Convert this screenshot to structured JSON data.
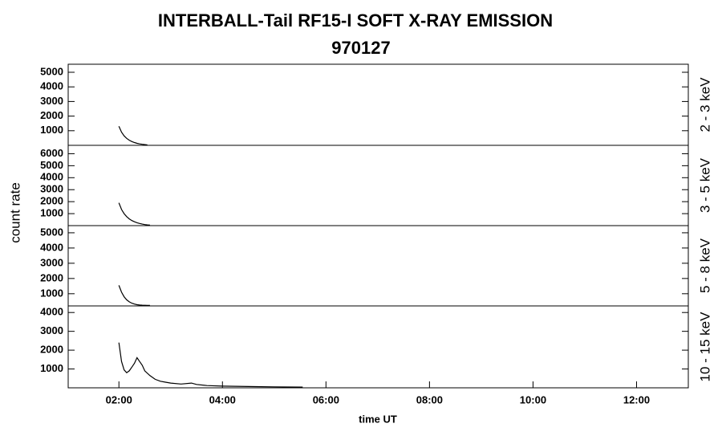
{
  "chart_data": {
    "type": "line",
    "title": "INTERBALL-Tail RF15-I SOFT X-RAY EMISSION",
    "subtitle": "970127",
    "x_label": "time UT",
    "y_label": "count rate",
    "color": "#000000",
    "xlim": [
      1.02,
      13.0
    ],
    "xticks": [
      {
        "value": 2,
        "label": "02:00"
      },
      {
        "value": 4,
        "label": "04:00"
      },
      {
        "value": 6,
        "label": "06:00"
      },
      {
        "value": 8,
        "label": "08:00"
      },
      {
        "value": 10,
        "label": "10:00"
      },
      {
        "value": 12,
        "label": "12:00"
      }
    ],
    "panels": [
      {
        "label": "2 - 3 keV",
        "ylim": [
          0,
          5550
        ],
        "yticks": [
          1000,
          2000,
          3000,
          4000,
          5000
        ],
        "x": [
          2.0,
          2.05,
          2.1,
          2.15,
          2.2,
          2.25,
          2.3,
          2.35,
          2.4,
          2.45,
          2.5,
          2.55
        ],
        "values": [
          1300,
          900,
          650,
          480,
          350,
          260,
          190,
          140,
          100,
          70,
          50,
          30
        ]
      },
      {
        "label": "3 - 5 keV",
        "ylim": [
          0,
          6700
        ],
        "yticks": [
          1000,
          2000,
          3000,
          4000,
          5000,
          6000
        ],
        "x": [
          2.0,
          2.05,
          2.1,
          2.15,
          2.2,
          2.25,
          2.3,
          2.35,
          2.4,
          2.45,
          2.5,
          2.55,
          2.6
        ],
        "values": [
          1900,
          1350,
          1000,
          750,
          560,
          420,
          320,
          240,
          180,
          130,
          90,
          60,
          40
        ]
      },
      {
        "label": "5 - 8 keV",
        "ylim": [
          200,
          5470
        ],
        "yticks": [
          1000,
          2000,
          3000,
          4000,
          5000
        ],
        "x": [
          2.0,
          2.05,
          2.1,
          2.15,
          2.2,
          2.25,
          2.3,
          2.35,
          2.4,
          2.45,
          2.5,
          2.55,
          2.6
        ],
        "values": [
          1550,
          1100,
          800,
          600,
          470,
          380,
          320,
          280,
          260,
          250,
          240,
          235,
          230
        ]
      },
      {
        "label": "10 - 15 keV",
        "ylim": [
          0,
          4350
        ],
        "yticks": [
          1000,
          2000,
          3000,
          4000
        ],
        "x": [
          2.0,
          2.05,
          2.1,
          2.15,
          2.2,
          2.25,
          2.3,
          2.35,
          2.4,
          2.45,
          2.5,
          2.6,
          2.7,
          2.8,
          2.9,
          3.0,
          3.2,
          3.4,
          3.5,
          3.7,
          4.0,
          4.5,
          5.0,
          5.55
        ],
        "values": [
          2400,
          1400,
          950,
          800,
          900,
          1100,
          1300,
          1600,
          1400,
          1200,
          900,
          650,
          450,
          350,
          300,
          250,
          200,
          250,
          180,
          120,
          90,
          70,
          50,
          40
        ]
      }
    ]
  }
}
